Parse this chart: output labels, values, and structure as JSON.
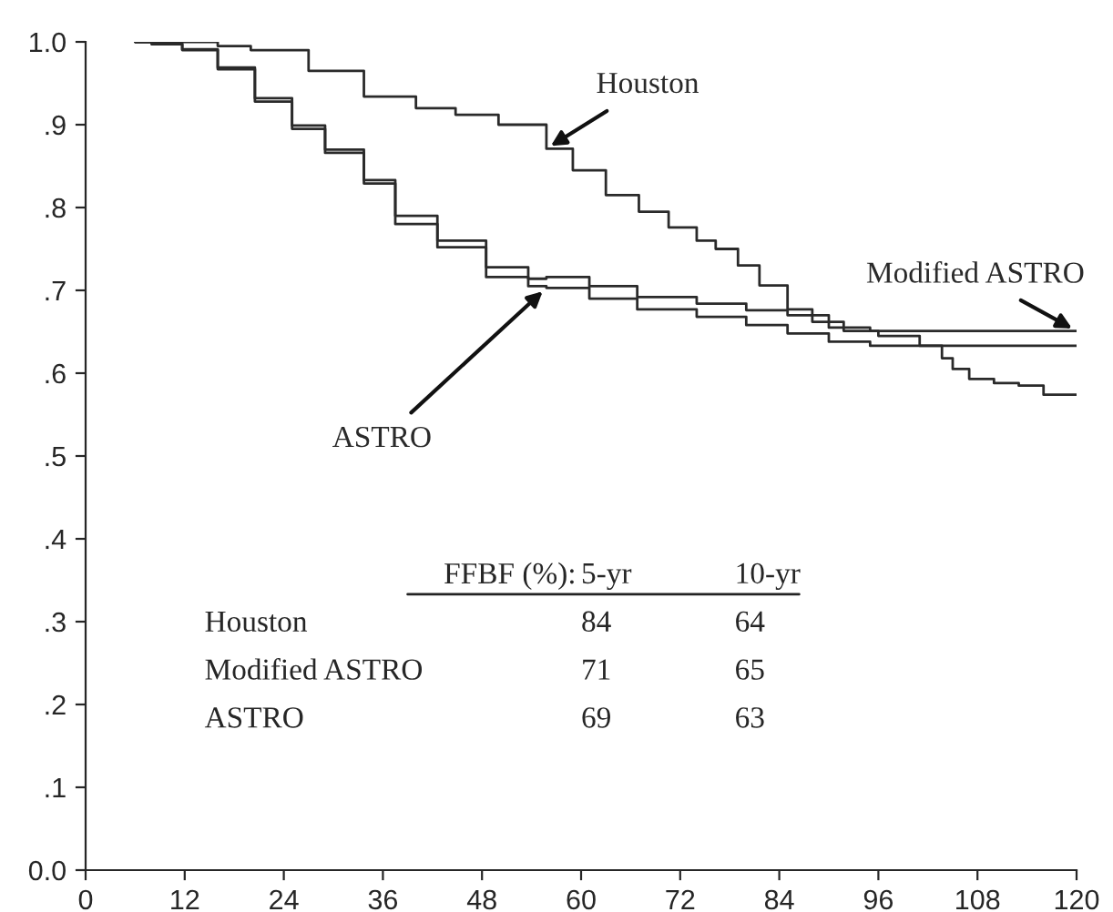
{
  "chart_data": {
    "type": "step",
    "series": [
      {
        "name": "Houston",
        "color": "#2a2a2a",
        "x": [
          6,
          11.7,
          16,
          20,
          27,
          33.7,
          40,
          44.8,
          50,
          55.8,
          59,
          63,
          67,
          70.6,
          74,
          76.3,
          79,
          81.6,
          85,
          88,
          91.8,
          96,
          101,
          103.7,
          105,
          107,
          110,
          113,
          116,
          120
        ],
        "values": [
          1,
          1,
          0.995,
          0.99,
          0.965,
          0.934,
          0.92,
          0.912,
          0.9,
          0.871,
          0.845,
          0.815,
          0.795,
          0.776,
          0.76,
          0.75,
          0.73,
          0.706,
          0.677,
          0.662,
          0.651,
          0.645,
          0.633,
          0.618,
          0.605,
          0.593,
          0.588,
          0.585,
          0.574,
          0.574
        ]
      },
      {
        "name": "Modified ASTRO",
        "color": "#2a2a2a",
        "x": [
          6,
          8,
          11.7,
          16,
          20.5,
          25,
          29,
          33.7,
          37.5,
          42.6,
          48.5,
          53.6,
          55.8,
          61,
          66.8,
          74,
          80,
          85,
          90,
          95,
          120
        ],
        "values": [
          1,
          0.998,
          0.991,
          0.969,
          0.932,
          0.899,
          0.87,
          0.833,
          0.79,
          0.76,
          0.728,
          0.714,
          0.716,
          0.705,
          0.692,
          0.684,
          0.676,
          0.67,
          0.655,
          0.651,
          0.651
        ]
      },
      {
        "name": "ASTRO",
        "color": "#2a2a2a",
        "x": [
          6,
          8,
          11.7,
          16,
          20.5,
          25,
          29,
          33.7,
          37.5,
          42.6,
          48.5,
          53.6,
          55.8,
          61,
          66.8,
          74,
          80,
          85,
          90,
          95,
          120
        ],
        "values": [
          1,
          0.997,
          0.99,
          0.967,
          0.928,
          0.895,
          0.866,
          0.829,
          0.78,
          0.752,
          0.716,
          0.705,
          0.703,
          0.69,
          0.677,
          0.668,
          0.658,
          0.648,
          0.638,
          0.633,
          0.633
        ]
      }
    ],
    "xlim": [
      0,
      120
    ],
    "xticks": [
      0,
      12,
      24,
      36,
      48,
      60,
      72,
      84,
      96,
      108,
      120
    ],
    "ylim": [
      0,
      1
    ],
    "yticks": [
      {
        "value": 0,
        "label": "0.0"
      },
      {
        "value": 0.1,
        "label": ".1"
      },
      {
        "value": 0.2,
        "label": ".2"
      },
      {
        "value": 0.3,
        "label": ".3"
      },
      {
        "value": 0.4,
        "label": ".4"
      },
      {
        "value": 0.5,
        "label": ".5"
      },
      {
        "value": 0.6,
        "label": ".6"
      },
      {
        "value": 0.7,
        "label": ".7"
      },
      {
        "value": 0.8,
        "label": ".8"
      },
      {
        "value": 0.9,
        "label": ".9"
      },
      {
        "value": 1,
        "label": "1.0"
      }
    ],
    "grid": false,
    "legend": false,
    "marker": "none",
    "line_style": "solid",
    "annotations": [
      "FFBF (%):",
      "5-yr",
      "10-yr",
      "Houston",
      "84",
      "64",
      "Modified ASTRO",
      "71",
      "65",
      "ASTRO",
      "69",
      "63"
    ]
  }
}
